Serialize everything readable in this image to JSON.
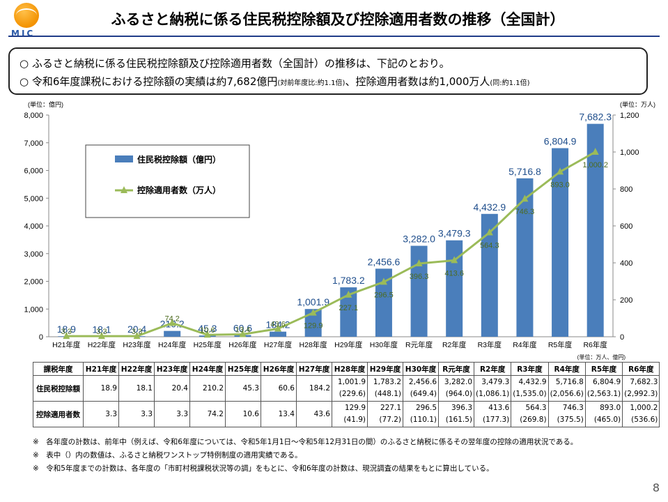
{
  "logo_text": "MIC",
  "title": "ふるさと納税に係る住民税控除額及び控除適用者数の推移（全国計）",
  "summary": [
    {
      "bullet": "○",
      "text": "ふるさと納税に係る住民税控除額及び控除適用者数（全国計）の推移は、下記のとおり。",
      "small": ""
    },
    {
      "bullet": "○",
      "text": "令和6年度課税における控除額の実績は約7,682億円",
      "small": "(対前年度比:約1.1倍)",
      "text2": "、控除適用者数は約1,000万人",
      "small2": "(同:約1.1倍)"
    }
  ],
  "chart_data": {
    "type": "bar",
    "categories": [
      "H21年度",
      "H22年度",
      "H23年度",
      "H24年度",
      "H25年度",
      "H26年度",
      "H27年度",
      "H28年度",
      "H29年度",
      "H30年度",
      "R元年度",
      "R2年度",
      "R3年度",
      "R4年度",
      "R5年度",
      "R6年度"
    ],
    "series": [
      {
        "name": "住民税控除額（億円）",
        "type": "bar",
        "axis": "left",
        "color": "#4a7ebb",
        "values": [
          18.9,
          18.1,
          20.4,
          210.2,
          45.3,
          60.6,
          184.2,
          1001.9,
          1783.2,
          2456.6,
          3282.0,
          3479.3,
          4432.9,
          5716.8,
          6804.9,
          7682.3
        ],
        "labels": [
          "18.9",
          "18.1",
          "20.4",
          "210.2",
          "45.3",
          "60.6",
          "184.2",
          "1,001.9",
          "1,783.2",
          "2,456.6",
          "3,282.0",
          "3,479.3",
          "4,432.9",
          "5,716.8",
          "6,804.9",
          "7,682.3"
        ]
      },
      {
        "name": "控除適用者数（万人）",
        "type": "line",
        "axis": "right",
        "color": "#9bbb59",
        "values": [
          3.3,
          3.3,
          3.3,
          74.2,
          10.6,
          13.4,
          43.6,
          129.9,
          227.1,
          296.5,
          396.3,
          413.6,
          564.3,
          746.3,
          893.0,
          1000.2
        ],
        "labels": [
          "3.3",
          "3.3",
          "3.3",
          "74.2",
          "10.6",
          "13.4",
          "43.6",
          "129.9",
          "227.1",
          "296.5",
          "396.3",
          "413.6",
          "564.3",
          "746.3",
          "893.0",
          "1,000.2"
        ]
      }
    ],
    "left_axis": {
      "unit_label": "(単位：億円)",
      "min": 0,
      "max": 8000,
      "ticks": [
        "0",
        "1,000",
        "2,000",
        "3,000",
        "4,000",
        "5,000",
        "6,000",
        "7,000",
        "8,000"
      ]
    },
    "right_axis": {
      "unit_label": "(単位：万人)",
      "min": 0,
      "max": 1200,
      "ticks": [
        "0",
        "200",
        "400",
        "600",
        "800",
        "1,000",
        "1,200"
      ]
    },
    "bottom_unit_label": "(単位：万人、億円)",
    "legend_placement": "top-left",
    "grid": false
  },
  "table": {
    "header": [
      "課税年度",
      "H21年度",
      "H22年度",
      "H23年度",
      "H24年度",
      "H25年度",
      "H26年度",
      "H27年度",
      "H28年度",
      "H29年度",
      "H30年度",
      "R元年度",
      "R2年度",
      "R3年度",
      "R4年度",
      "R5年度",
      "R6年度"
    ],
    "rows": [
      {
        "label": "住民税控除額",
        "values": [
          "18.9",
          "18.1",
          "20.4",
          "210.2",
          "45.3",
          "60.6",
          "184.2",
          "1,001.9",
          "1,783.2",
          "2,456.6",
          "3,282.0",
          "3,479.3",
          "4,432.9",
          "5,716.8",
          "6,804.9",
          "7,682.3"
        ],
        "sub": [
          "",
          "",
          "",
          "",
          "",
          "",
          "",
          "(229.6)",
          "(448.1)",
          "(649.4)",
          "(964.0)",
          "(1,086.1)",
          "(1,535.0)",
          "(2,056.6)",
          "(2,563.1)",
          "(2,992.3)"
        ]
      },
      {
        "label": "控除適用者数",
        "values": [
          "3.3",
          "3.3",
          "3.3",
          "74.2",
          "10.6",
          "13.4",
          "43.6",
          "129.9",
          "227.1",
          "296.5",
          "396.3",
          "413.6",
          "564.3",
          "746.3",
          "893.0",
          "1,000.2"
        ],
        "sub": [
          "",
          "",
          "",
          "",
          "",
          "",
          "",
          "(41.9)",
          "(77.2)",
          "(110.1)",
          "(161.5)",
          "(177.3)",
          "(269.8)",
          "(375.5)",
          "(465.0)",
          "(536.6)"
        ]
      }
    ]
  },
  "notes": [
    "※　各年度の計数は、前年中（例えば、令和6年度については、令和5年1月1日～令和5年12月31日の間）のふるさと納税に係るその翌年度の控除の適用状況である。",
    "※　表中（）内の数値は、ふるさと納税ワンストップ特例制度の適用実績である。",
    "※　令和5年度までの計数は、各年度の「市町村税課税状況等の調」をもとに、令和6年度の計数は、現況調査の結果をもとに算出している。"
  ],
  "page_number": "8"
}
